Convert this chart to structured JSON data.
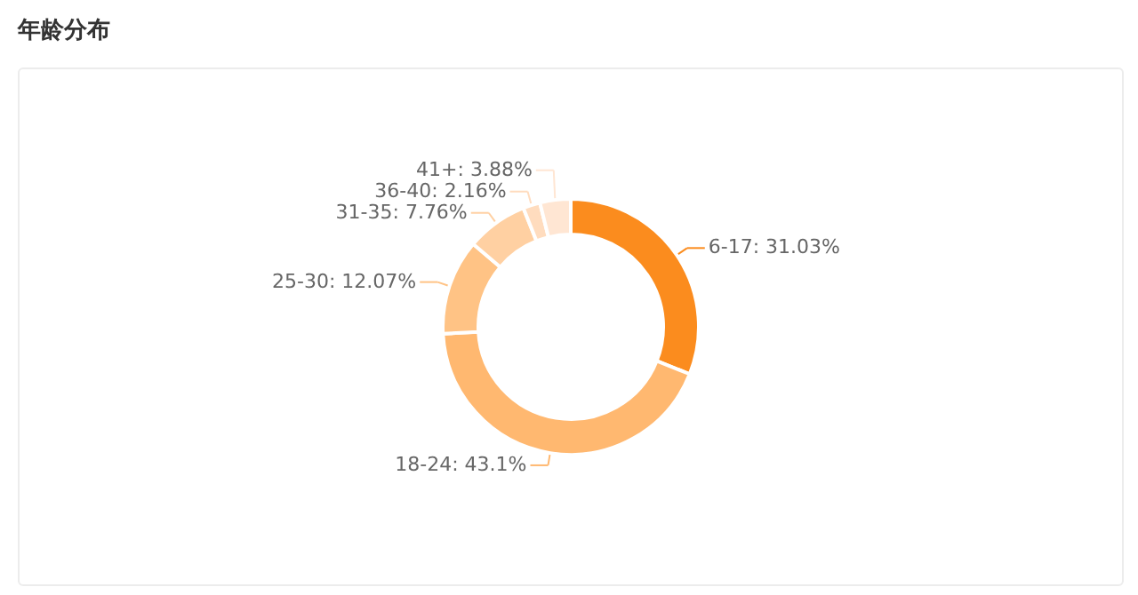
{
  "chart_data": {
    "type": "donut",
    "title": "年龄分布",
    "categories": [
      "6-17",
      "18-24",
      "25-30",
      "31-35",
      "36-40",
      "41+"
    ],
    "values": [
      31.03,
      43.1,
      12.07,
      7.76,
      2.16,
      3.88
    ],
    "value_labels": [
      ": 31.03%",
      ": 43.1%",
      ": 12.07%",
      ": 7.76%",
      ": 2.16%",
      ": 3.88%"
    ],
    "colors": [
      "#fb8c1e",
      "#ffb870",
      "#ffc385",
      "#ffd0a2",
      "#ffdcbe",
      "#ffe6d3"
    ]
  }
}
